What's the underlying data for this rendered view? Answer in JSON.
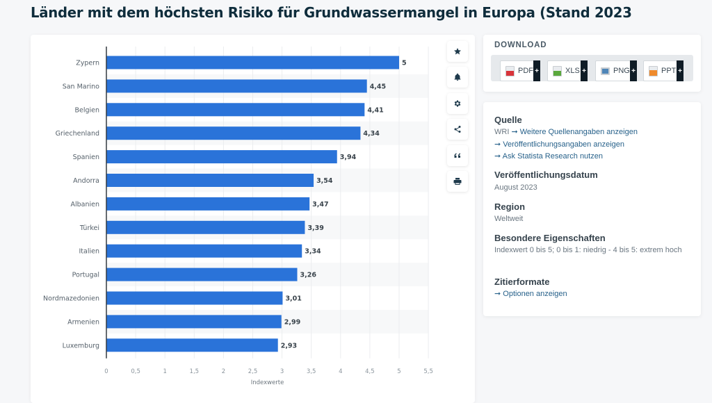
{
  "page": {
    "title": "Länder mit dem höchsten Risiko für Grundwassermangel in Europa (Stand 2023"
  },
  "colors": {
    "bar": "#2a73d9",
    "title": "#0f2d3c",
    "link": "#27618a",
    "stripe": "#f7f8f9"
  },
  "chart_data": {
    "type": "bar",
    "orientation": "horizontal",
    "title": "Länder mit dem höchsten Risiko für Grundwassermangel in Europa (Stand 2023",
    "categories": [
      "Zypern",
      "San Marino",
      "Belgien",
      "Griechenland",
      "Spanien",
      "Andorra",
      "Albanien",
      "Türkei",
      "Italien",
      "Portugal",
      "Nordmazedonien",
      "Armenien",
      "Luxemburg"
    ],
    "values": [
      5,
      4.45,
      4.41,
      4.34,
      3.94,
      3.54,
      3.47,
      3.39,
      3.34,
      3.26,
      3.01,
      2.99,
      2.93
    ],
    "value_labels": [
      "5",
      "4,45",
      "4,41",
      "4,34",
      "3,94",
      "3,54",
      "3,47",
      "3,39",
      "3,34",
      "3,26",
      "3,01",
      "2,99",
      "2,93"
    ],
    "xlabel": "Indexwerte",
    "ylabel": "",
    "xlim": [
      0,
      5.5
    ],
    "xticks": [
      0,
      0.5,
      1,
      1.5,
      2,
      2.5,
      3,
      3.5,
      4,
      4.5,
      5,
      5.5
    ],
    "xtick_labels": [
      "0",
      "0,5",
      "1",
      "1,5",
      "2",
      "2,5",
      "3",
      "3,5",
      "4",
      "4,5",
      "5",
      "5,5"
    ],
    "grid": true,
    "legend": "none"
  },
  "toolbar": {
    "items": [
      {
        "name": "favorite",
        "icon": "star-icon"
      },
      {
        "name": "notification",
        "icon": "bell-icon"
      },
      {
        "name": "settings",
        "icon": "gear-icon"
      },
      {
        "name": "share",
        "icon": "share-icon"
      },
      {
        "name": "cite",
        "icon": "quote-icon"
      },
      {
        "name": "print",
        "icon": "printer-icon"
      }
    ]
  },
  "download": {
    "title": "DOWNLOAD",
    "buttons": [
      {
        "label": "PDF",
        "icon": "pdf-file-icon",
        "color": "#d9343a",
        "plus": "+"
      },
      {
        "label": "XLS",
        "icon": "xls-file-icon",
        "color": "#5aa83c",
        "plus": "+"
      },
      {
        "label": "PNG",
        "icon": "png-file-icon",
        "color": "#4f86b8",
        "plus": "+"
      },
      {
        "label": "PPT",
        "icon": "ppt-file-icon",
        "color": "#ef8a2c",
        "plus": "+"
      }
    ]
  },
  "info": {
    "source_heading": "Quelle",
    "source_name": "WRI",
    "source_links": [
      "Weitere Quellenangaben anzeigen",
      "Veröffentlichungsangaben anzeigen",
      "Ask Statista Research nutzen"
    ],
    "date_heading": "Veröffentlichungsdatum",
    "date_value": "August 2023",
    "region_heading": "Region",
    "region_value": "Weltweit",
    "features_heading": "Besondere Eigenschaften",
    "features_value": "Indexwert 0 bis 5; 0 bis 1: niedrig - 4 bis 5: extrem hoch",
    "citation_heading": "Zitierformate",
    "citation_link": "Optionen anzeigen",
    "arrow_symbol": "➞"
  }
}
